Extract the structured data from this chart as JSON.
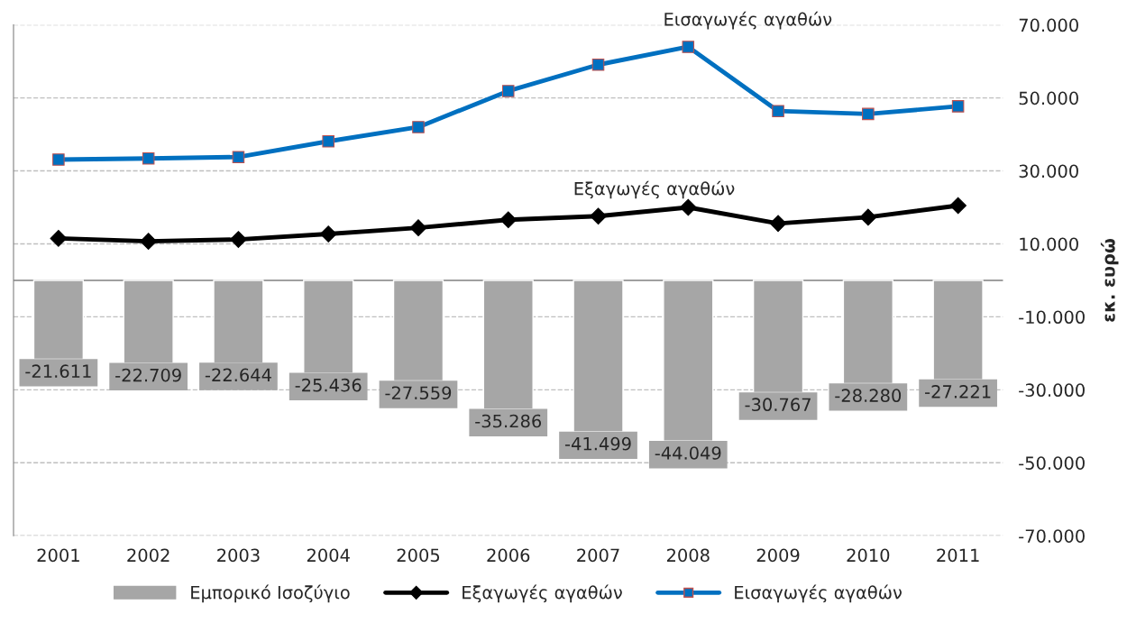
{
  "chart_data": {
    "type": "bar",
    "categories": [
      "2001",
      "2002",
      "2003",
      "2004",
      "2005",
      "2006",
      "2007",
      "2008",
      "2009",
      "2010",
      "2011"
    ],
    "series": [
      {
        "name": "Εμπορικό Ισοζύγιο",
        "color": "#a6a6a6",
        "values": [
          -21611,
          -22709,
          -22644,
          -25436,
          -27559,
          -35286,
          -41499,
          -44049,
          -30767,
          -28280,
          -27221
        ],
        "value_labels": [
          "-21.611",
          "-22.709",
          "-22.644",
          "-25.436",
          "-27.559",
          "-35.286",
          "-41.499",
          "-44.049",
          "-30.767",
          "-28.280",
          "-27.221"
        ]
      },
      {
        "name": "Εξαγωγές αγαθών",
        "type": "line",
        "color": "#000000",
        "marker": "diamond",
        "values": [
          11500,
          10700,
          11200,
          12700,
          14400,
          16600,
          17600,
          20000,
          15600,
          17300,
          20500
        ]
      },
      {
        "name": "Εισαγωγές αγαθών",
        "type": "line",
        "color": "#0070c0",
        "marker": "square",
        "values": [
          33100,
          33400,
          33800,
          38100,
          42000,
          51900,
          59100,
          64000,
          46400,
          45600,
          47700
        ]
      }
    ],
    "ylabel": "εκ. ευρώ",
    "ylim": [
      -70000,
      70000
    ],
    "yticks": [
      {
        "value": -70000,
        "label": "-70.000"
      },
      {
        "value": -50000,
        "label": "-50.000"
      },
      {
        "value": -30000,
        "label": "-30.000"
      },
      {
        "value": -10000,
        "label": "-10.000"
      },
      {
        "value": 10000,
        "label": "10.000"
      },
      {
        "value": 30000,
        "label": "30.000"
      },
      {
        "value": 50000,
        "label": "50.000"
      },
      {
        "value": 70000,
        "label": "70.000"
      }
    ],
    "annotations": [
      {
        "text": "Εισαγωγές αγαθών",
        "x": "2008",
        "y": 64000
      },
      {
        "text": "Εξαγωγές αγαθών",
        "x": "2007",
        "y": 17600
      }
    ],
    "grid": "y",
    "line_style": "solid",
    "legend": "bottom"
  }
}
